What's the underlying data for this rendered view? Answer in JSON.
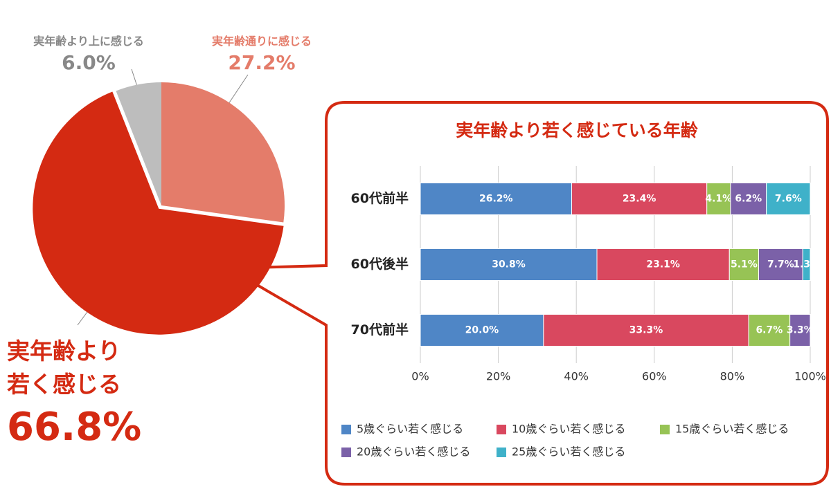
{
  "chart_data": [
    {
      "type": "pie",
      "categories": [
        "実年齢通りに感じる",
        "実年齢より若く感じる",
        "実年齢より上に感じる"
      ],
      "values": [
        27.2,
        66.8,
        6.0
      ],
      "value_labels": [
        "27.2%",
        "66.8%",
        "6.0%"
      ],
      "colors": [
        "#e47c6a",
        "#d42a12",
        "#bdbdbd"
      ]
    },
    {
      "type": "bar",
      "orientation": "horizontal",
      "stacking": "percent",
      "title": "実年齢より若く感じている年齢",
      "categories": [
        "60代前半",
        "60代後半",
        "70代前半"
      ],
      "series": [
        {
          "name": "5歳ぐらい若く感じる",
          "color": "#4f86c6",
          "values": [
            26.2,
            30.8,
            20.0
          ],
          "value_labels": [
            "26.2%",
            "30.8%",
            "20.0%"
          ]
        },
        {
          "name": "10歳ぐらい若く感じる",
          "color": "#d9485f",
          "values": [
            23.4,
            23.1,
            33.3
          ],
          "value_labels": [
            "23.4%",
            "23.1%",
            "33.3%"
          ]
        },
        {
          "name": "15歳ぐらい若く感じる",
          "color": "#97c355",
          "values": [
            4.1,
            5.1,
            6.7
          ],
          "value_labels": [
            "4.1%",
            "5.1%",
            "6.7%"
          ]
        },
        {
          "name": "20歳ぐらい若く感じる",
          "color": "#7b61a8",
          "values": [
            6.2,
            7.7,
            3.3
          ],
          "value_labels": [
            "6.2%",
            "7.7%",
            "3.3%"
          ]
        },
        {
          "name": "25歳ぐらい若く感じる",
          "color": "#3fb1c9",
          "values": [
            7.6,
            1.3,
            null
          ],
          "value_labels": [
            "7.6%",
            "1.3%",
            null
          ]
        }
      ],
      "xlim": [
        0,
        100
      ],
      "xticks": [
        {
          "value": 0,
          "label": "0%"
        },
        {
          "value": 20,
          "label": "20%"
        },
        {
          "value": 40,
          "label": "40%"
        },
        {
          "value": 60,
          "label": "60%"
        },
        {
          "value": 80,
          "label": "80%"
        },
        {
          "value": 100,
          "label": "100%"
        }
      ],
      "grid": true
    }
  ]
}
